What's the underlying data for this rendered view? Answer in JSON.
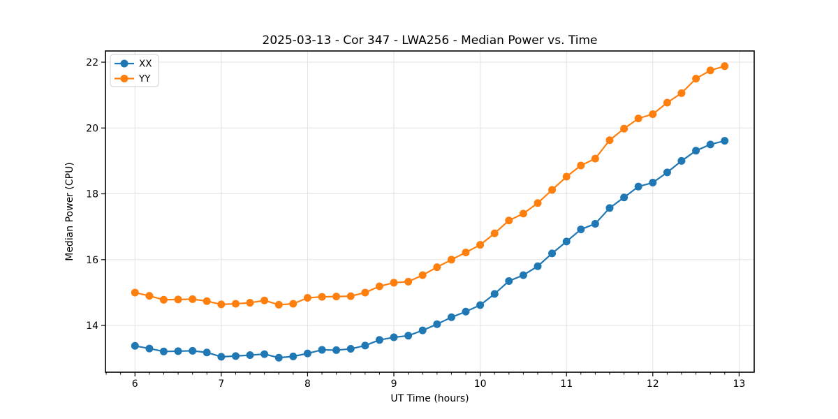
{
  "chart_data": {
    "type": "line",
    "title": "2025-03-13 - Cor 347 - LWA256 - Median Power vs. Time",
    "xlabel": "UT Time (hours)",
    "ylabel": "Median Power (CPU)",
    "xlim": [
      5.658,
      13.175
    ],
    "ylim": [
      12.58,
      22.34
    ],
    "xticks": [
      6,
      7,
      8,
      9,
      10,
      11,
      12,
      13
    ],
    "yticks": [
      14,
      16,
      18,
      20,
      22
    ],
    "minor_xtick_interval_hours": 0.1667,
    "grid": true,
    "grid_color": "#e2e2e2",
    "spine_color": "#000000",
    "legend_position": "upper-left",
    "x": [
      6.0,
      6.167,
      6.333,
      6.5,
      6.667,
      6.833,
      7.0,
      7.167,
      7.333,
      7.5,
      7.667,
      7.833,
      8.0,
      8.167,
      8.333,
      8.5,
      8.667,
      8.833,
      9.0,
      9.167,
      9.333,
      9.5,
      9.667,
      9.833,
      10.0,
      10.167,
      10.333,
      10.5,
      10.667,
      10.833,
      11.0,
      11.167,
      11.333,
      11.5,
      11.667,
      11.833,
      12.0,
      12.167,
      12.333,
      12.5,
      12.667,
      12.833
    ],
    "series": [
      {
        "name": "XX",
        "color": "#1f77b4",
        "marker": "circle",
        "values": [
          13.38,
          13.3,
          13.21,
          13.22,
          13.23,
          13.18,
          13.05,
          13.07,
          13.1,
          13.13,
          13.02,
          13.06,
          13.15,
          13.26,
          13.25,
          13.29,
          13.39,
          13.56,
          13.64,
          13.69,
          13.85,
          14.04,
          14.25,
          14.42,
          14.62,
          14.96,
          15.35,
          15.53,
          15.8,
          16.19,
          16.55,
          16.92,
          17.09,
          17.57,
          17.89,
          18.22,
          18.34,
          18.65,
          19.0,
          19.31,
          19.5,
          19.61
        ]
      },
      {
        "name": "YY",
        "color": "#ff7f0e",
        "marker": "circle",
        "values": [
          15.0,
          14.9,
          14.78,
          14.79,
          14.8,
          14.74,
          14.64,
          14.66,
          14.69,
          14.76,
          14.63,
          14.66,
          14.84,
          14.87,
          14.88,
          14.89,
          15.0,
          15.19,
          15.3,
          15.33,
          15.53,
          15.77,
          16.0,
          16.22,
          16.45,
          16.8,
          17.19,
          17.4,
          17.72,
          18.12,
          18.52,
          18.86,
          19.07,
          19.63,
          19.98,
          20.29,
          20.42,
          20.77,
          21.06,
          21.5,
          21.75,
          21.88
        ]
      }
    ]
  }
}
